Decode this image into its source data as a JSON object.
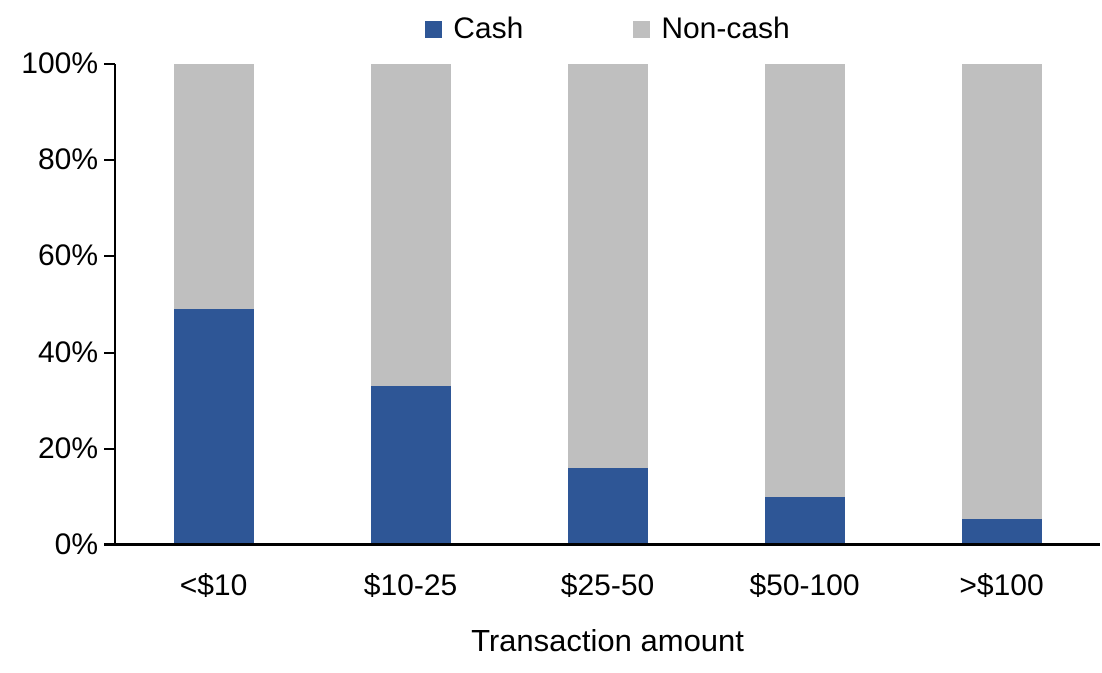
{
  "chart_data": {
    "type": "bar",
    "stacked": true,
    "percent_stacked": true,
    "title": "",
    "xlabel": "Transaction amount",
    "ylabel": "",
    "categories": [
      "<$10",
      "$10-25",
      "$25-50",
      "$50-100",
      ">$100"
    ],
    "series": [
      {
        "name": "Cash",
        "color": "#2E5696",
        "values": [
          49,
          33,
          16,
          10,
          5.5
        ]
      },
      {
        "name": "Non-cash",
        "color": "#BFBFBF",
        "values": [
          51,
          67,
          84,
          90,
          94.5
        ]
      }
    ],
    "ylim": [
      0,
      100
    ],
    "yticks": [
      0,
      20,
      40,
      60,
      80,
      100
    ],
    "ytick_labels": [
      "0%",
      "20%",
      "40%",
      "60%",
      "80%",
      "100%"
    ],
    "legend_position": "top-center",
    "grid": false
  },
  "colors": {
    "background": "#FFFFFF",
    "axis": "#000000",
    "text": "#000000"
  }
}
